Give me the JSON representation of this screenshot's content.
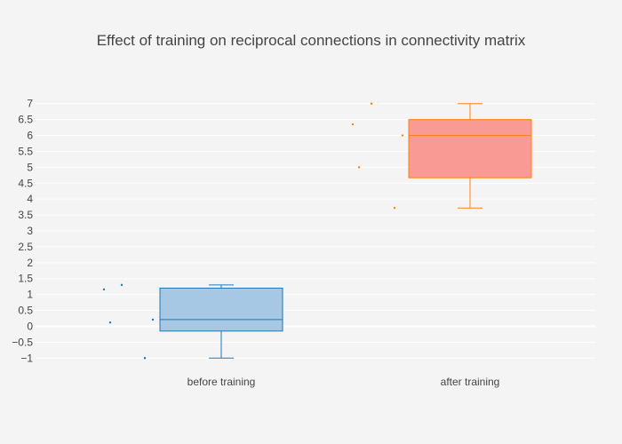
{
  "chart_data": {
    "type": "box",
    "title": "Effect of training on reciprocal connections in connectivity matrix",
    "xlabel": "",
    "ylabel": "",
    "ylim": [
      -1.3,
      7.3
    ],
    "yticks": [
      -1,
      -0.5,
      0,
      0.5,
      1,
      1.5,
      2,
      2.5,
      3,
      3.5,
      4,
      4.5,
      5,
      5.5,
      6,
      6.5,
      7
    ],
    "ytick_labels": [
      "−1",
      "−0.5",
      "0",
      "0.5",
      "1",
      "1.5",
      "2",
      "2.5",
      "3",
      "3.5",
      "4",
      "4.5",
      "5",
      "5.5",
      "6",
      "6.5",
      "7"
    ],
    "grid": true,
    "categories": [
      "before training",
      "after training"
    ],
    "series": [
      {
        "name": "before training",
        "color": "#1f77b4",
        "fill": "#a6c8e4",
        "stats": {
          "min": -1.0,
          "q1": -0.15,
          "median": 0.21,
          "q3": 1.2,
          "max": 1.3
        },
        "points": [
          1.16,
          1.3,
          0.12,
          0.21,
          -1.0
        ]
      },
      {
        "name": "after training",
        "color": "#ff7f0e",
        "fill": "#f99a94",
        "stats": {
          "min": 3.72,
          "q1": 4.67,
          "median": 6.0,
          "q3": 6.5,
          "max": 7.0
        },
        "points": [
          7.0,
          6.35,
          6.0,
          5.0,
          3.72
        ]
      }
    ]
  }
}
